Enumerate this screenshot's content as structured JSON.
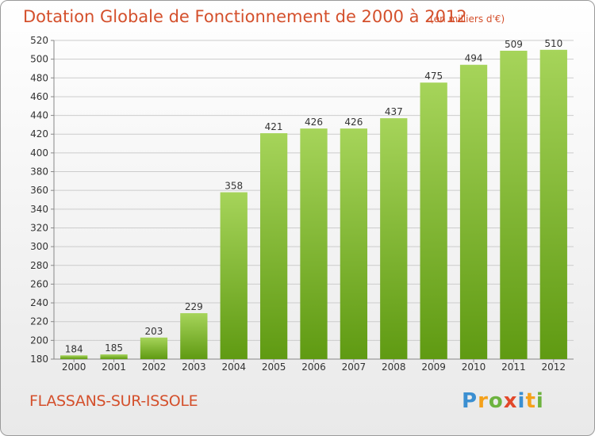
{
  "header": {
    "title": "Dotation Globale de Fonctionnement de 2000 à 2012",
    "unit": "(en milliers d'€)"
  },
  "footer": {
    "commune": "FLASSANS-SUR-ISSOLE",
    "logo_letters": [
      "P",
      "r",
      "o",
      "x",
      "i",
      "t",
      "i"
    ]
  },
  "colors": {
    "title": "#d4502c",
    "bar_top": "#a6d45a",
    "bar_bottom": "#5f9a12",
    "grid": "#cccccc"
  },
  "chart_data": {
    "type": "bar",
    "categories": [
      "2000",
      "2001",
      "2002",
      "2003",
      "2004",
      "2005",
      "2006",
      "2007",
      "2008",
      "2009",
      "2010",
      "2011",
      "2012"
    ],
    "values": [
      184,
      185,
      203,
      229,
      358,
      421,
      426,
      426,
      437,
      475,
      494,
      509,
      510
    ],
    "value_labels": [
      "184",
      "185",
      "203",
      "229",
      "358",
      "421",
      "426",
      "426",
      "437",
      "475",
      "494",
      "509",
      "510"
    ],
    "ylim": [
      180,
      520
    ],
    "yticks": [
      180,
      200,
      220,
      240,
      260,
      280,
      300,
      320,
      340,
      360,
      380,
      400,
      420,
      440,
      460,
      480,
      500,
      520
    ],
    "ytick_labels": [
      "180",
      "200",
      "220",
      "240",
      "260",
      "280",
      "300",
      "320",
      "340",
      "360",
      "380",
      "400",
      "420",
      "440",
      "460",
      "480",
      "500",
      "520"
    ],
    "grid": true,
    "legend": "none"
  }
}
